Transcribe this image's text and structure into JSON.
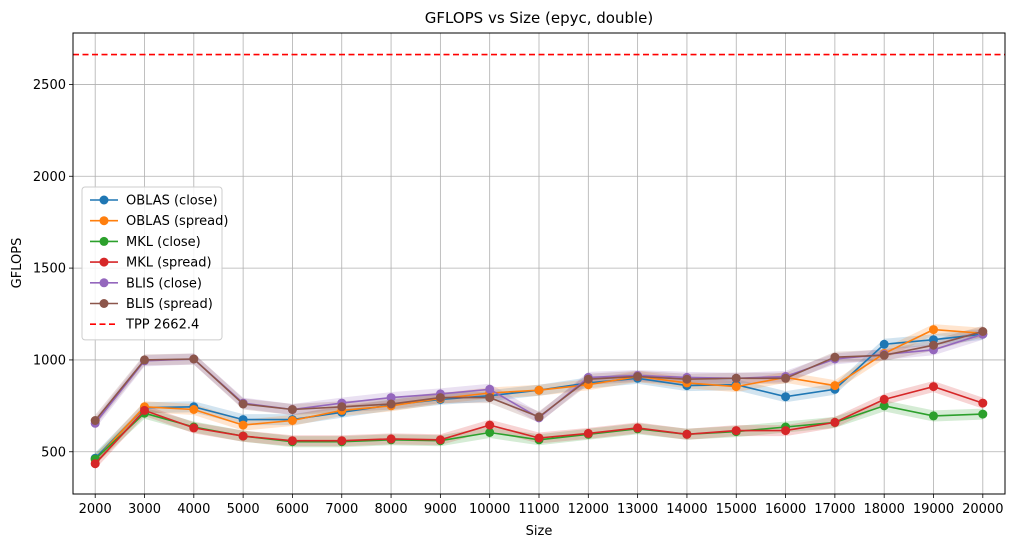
{
  "chart_data": {
    "type": "line",
    "title": "GFLOPS vs Size (epyc, double)",
    "xlabel": "Size",
    "ylabel": "GFLOPS",
    "x": [
      2000,
      3000,
      4000,
      5000,
      6000,
      7000,
      8000,
      9000,
      10000,
      11000,
      12000,
      13000,
      14000,
      15000,
      16000,
      17000,
      18000,
      19000,
      20000
    ],
    "x_tick_labels": [
      "2000",
      "3000",
      "4000",
      "5000",
      "6000",
      "7000",
      "8000",
      "9000",
      "10000",
      "11000",
      "12000",
      "13000",
      "14000",
      "15000",
      "16000",
      "17000",
      "18000",
      "19000",
      "20000"
    ],
    "y_ticks": [
      500,
      1000,
      1500,
      2000,
      2500
    ],
    "y_tick_labels": [
      "500",
      "1000",
      "1500",
      "2000",
      "2500"
    ],
    "xlim": [
      1550,
      20450
    ],
    "ylim": [
      270,
      2780
    ],
    "grid": true,
    "legend_position": "center-left",
    "series": [
      {
        "name": "OBLAS (close)",
        "color": "#1f77b4",
        "band": 30,
        "values": [
          465,
          740,
          745,
          675,
          675,
          715,
          755,
          785,
          805,
          835,
          875,
          900,
          860,
          865,
          800,
          840,
          1085,
          1110,
          1140
        ]
      },
      {
        "name": "OBLAS (spread)",
        "color": "#ff7f0e",
        "band": 30,
        "values": [
          455,
          745,
          730,
          645,
          670,
          725,
          750,
          790,
          820,
          835,
          865,
          910,
          875,
          855,
          905,
          860,
          1035,
          1165,
          1145
        ]
      },
      {
        "name": "MKL (close)",
        "color": "#2ca02c",
        "band": 30,
        "values": [
          460,
          710,
          635,
          585,
          555,
          555,
          565,
          560,
          605,
          565,
          595,
          625,
          595,
          610,
          635,
          660,
          750,
          695,
          705
        ]
      },
      {
        "name": "MKL (spread)",
        "color": "#d62728",
        "band": 30,
        "values": [
          435,
          725,
          630,
          585,
          560,
          560,
          570,
          565,
          645,
          575,
          600,
          630,
          595,
          615,
          615,
          660,
          785,
          855,
          765
        ]
      },
      {
        "name": "BLIS (close)",
        "color": "#9467bd",
        "band": 30,
        "values": [
          655,
          995,
          1005,
          765,
          730,
          765,
          795,
          815,
          840,
          685,
          905,
          915,
          905,
          900,
          910,
          1005,
          1030,
          1055,
          1140
        ]
      },
      {
        "name": "BLIS (spread)",
        "color": "#8c564b",
        "band": 30,
        "values": [
          670,
          1000,
          1005,
          760,
          730,
          745,
          760,
          795,
          795,
          690,
          895,
          910,
          895,
          900,
          900,
          1015,
          1025,
          1080,
          1155
        ]
      }
    ],
    "reference_line": {
      "name": "TPP 2662.4",
      "value": 2662.4,
      "color": "#ff0000"
    }
  }
}
